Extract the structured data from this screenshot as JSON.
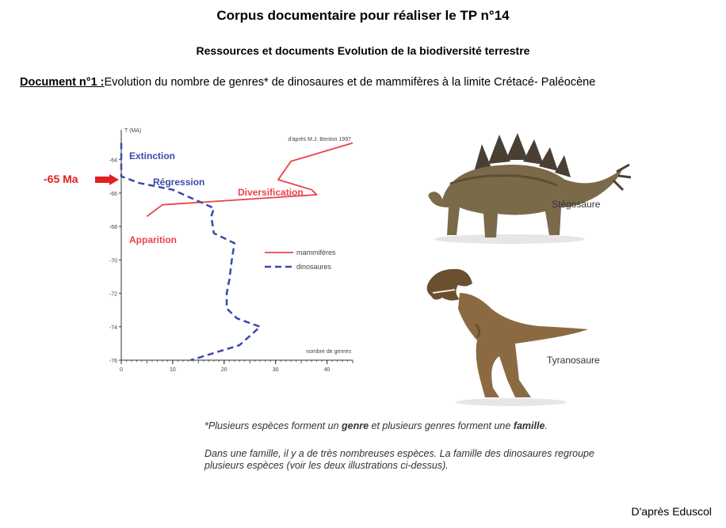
{
  "header": {
    "title": "Corpus documentaire pour réaliser le TP n°14",
    "subtitle": "Ressources et documents Evolution de la biodiversité terrestre",
    "doc_label": "Document n°1 :",
    "doc_text": "Evolution du nombre de genres* de dinosaures et de mammifères à la limite Crétacé- Paléocène"
  },
  "marker": {
    "label": "-65 Ma",
    "color": "#e02020"
  },
  "chart_data": {
    "type": "line",
    "source": "d'après M.J. Benton 1997",
    "ylabel": "T (MA)",
    "xlabel": "nombre de genres",
    "xlim": [
      0,
      45
    ],
    "ylim": [
      -76,
      -62.5
    ],
    "xticks": [
      0,
      10,
      20,
      30,
      40
    ],
    "yticks": [
      -64,
      -66,
      -68,
      -70,
      -72,
      -74,
      -76
    ],
    "series": [
      {
        "name": "mammifères",
        "color": "#e8444a",
        "dash": "solid",
        "points": [
          [
            5,
            -67.4
          ],
          [
            8,
            -66.7
          ],
          [
            38,
            -66.1
          ],
          [
            37,
            -65.8
          ],
          [
            30.5,
            -65.2
          ],
          [
            33,
            -64.1
          ],
          [
            45,
            -63.0
          ]
        ]
      },
      {
        "name": "dinosaures",
        "color": "#3a4aa8",
        "dash": "dashed",
        "points": [
          [
            0,
            -63.0
          ],
          [
            0,
            -65.0
          ],
          [
            3.5,
            -65.4
          ],
          [
            10,
            -65.8
          ],
          [
            18,
            -66.9
          ],
          [
            17.5,
            -67.4
          ],
          [
            18,
            -68.4
          ],
          [
            22,
            -69.0
          ],
          [
            21.5,
            -70.0
          ],
          [
            21,
            -71.2
          ],
          [
            20.5,
            -72.0
          ],
          [
            20.5,
            -72.9
          ],
          [
            22.5,
            -73.5
          ],
          [
            27,
            -74.0
          ],
          [
            23,
            -75.1
          ],
          [
            13.5,
            -76.0
          ]
        ]
      }
    ],
    "annotations": [
      {
        "text": "Extinction",
        "color": "#3a4aa8"
      },
      {
        "text": "Régression",
        "color": "#3a4aa8"
      },
      {
        "text": "Diversification",
        "color": "#e8444a"
      },
      {
        "text": "Apparition",
        "color": "#e8444a"
      }
    ],
    "legend_position": "right"
  },
  "illustrations": {
    "stegosaurus_label": "Stégosaure",
    "trex_label": "Tyranosaure"
  },
  "notes": {
    "line1_a": "*Plusieurs espèces forment un ",
    "line1_b": "genre",
    "line1_c": " et plusieurs genres forment une ",
    "line1_d": "famille",
    "line1_e": ".",
    "line2": "Dans une famille, il y a de très nombreuses espèces. La famille des dinosaures regroupe",
    "line3": "plusieurs espèces (voir les deux illustrations ci-dessus)."
  },
  "credit": "D'après Eduscol"
}
